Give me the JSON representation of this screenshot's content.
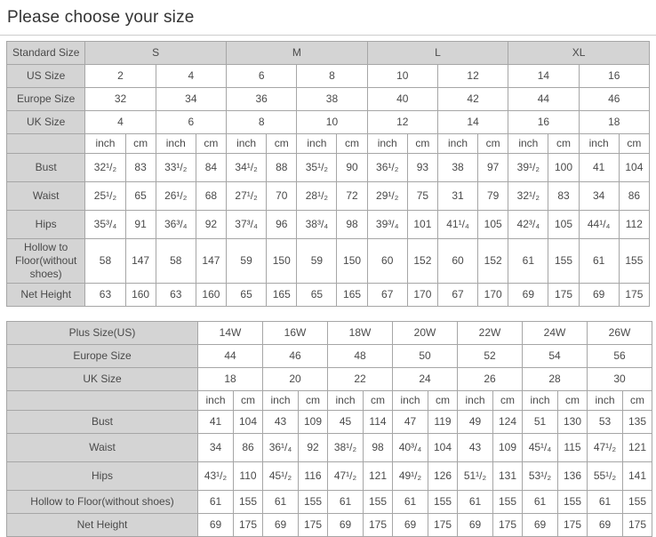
{
  "page": {
    "title": "Please choose your size"
  },
  "standard_table": {
    "corner_label": "Standard Size",
    "size_groups": [
      "S",
      "M",
      "L",
      "XL"
    ],
    "size_rows": [
      {
        "label": "US Size",
        "values": [
          "2",
          "4",
          "6",
          "8",
          "10",
          "12",
          "14",
          "16"
        ]
      },
      {
        "label": "Europe Size",
        "values": [
          "32",
          "34",
          "36",
          "38",
          "40",
          "42",
          "44",
          "46"
        ]
      },
      {
        "label": "UK Size",
        "values": [
          "4",
          "6",
          "8",
          "10",
          "12",
          "14",
          "16",
          "18"
        ]
      }
    ],
    "units": [
      "inch",
      "cm",
      "inch",
      "cm",
      "inch",
      "cm",
      "inch",
      "cm",
      "inch",
      "cm",
      "inch",
      "cm",
      "inch",
      "cm",
      "inch",
      "cm"
    ],
    "measure_rows": [
      {
        "label": "Bust",
        "values": [
          "32¹/₂",
          "83",
          "33¹/₂",
          "84",
          "34¹/₂",
          "88",
          "35¹/₂",
          "90",
          "36¹/₂",
          "93",
          "38",
          "97",
          "39¹/₂",
          "100",
          "41",
          "104"
        ]
      },
      {
        "label": "Waist",
        "values": [
          "25¹/₂",
          "65",
          "26¹/₂",
          "68",
          "27¹/₂",
          "70",
          "28¹/₂",
          "72",
          "29¹/₂",
          "75",
          "31",
          "79",
          "32¹/₂",
          "83",
          "34",
          "86"
        ]
      },
      {
        "label": "Hips",
        "values": [
          "35³/₄",
          "91",
          "36³/₄",
          "92",
          "37³/₄",
          "96",
          "38³/₄",
          "98",
          "39³/₄",
          "101",
          "41¹/₄",
          "105",
          "42³/₄",
          "105",
          "44¹/₄",
          "112"
        ]
      },
      {
        "label": "Hollow to Floor(without shoes)",
        "values": [
          "58",
          "147",
          "58",
          "147",
          "59",
          "150",
          "59",
          "150",
          "60",
          "152",
          "60",
          "152",
          "61",
          "155",
          "61",
          "155"
        ]
      },
      {
        "label": "Net Height",
        "values": [
          "63",
          "160",
          "63",
          "160",
          "65",
          "165",
          "65",
          "165",
          "67",
          "170",
          "67",
          "170",
          "69",
          "175",
          "69",
          "175"
        ]
      }
    ]
  },
  "plus_table": {
    "size_rows": [
      {
        "label": "Plus Size(US)",
        "values": [
          "14W",
          "16W",
          "18W",
          "20W",
          "22W",
          "24W",
          "26W"
        ]
      },
      {
        "label": "Europe Size",
        "values": [
          "44",
          "46",
          "48",
          "50",
          "52",
          "54",
          "56"
        ]
      },
      {
        "label": "UK Size",
        "values": [
          "18",
          "20",
          "22",
          "24",
          "26",
          "28",
          "30"
        ]
      }
    ],
    "units": [
      "inch",
      "cm",
      "inch",
      "cm",
      "inch",
      "cm",
      "inch",
      "cm",
      "inch",
      "cm",
      "inch",
      "cm",
      "inch",
      "cm"
    ],
    "measure_rows": [
      {
        "label": "Bust",
        "values": [
          "41",
          "104",
          "43",
          "109",
          "45",
          "114",
          "47",
          "119",
          "49",
          "124",
          "51",
          "130",
          "53",
          "135"
        ]
      },
      {
        "label": "Waist",
        "values": [
          "34",
          "86",
          "36¹/₄",
          "92",
          "38¹/₂",
          "98",
          "40³/₄",
          "104",
          "43",
          "109",
          "45¹/₄",
          "115",
          "47¹/₂",
          "121"
        ]
      },
      {
        "label": "Hips",
        "values": [
          "43¹/₂",
          "110",
          "45¹/₂",
          "116",
          "47¹/₂",
          "121",
          "49¹/₂",
          "126",
          "51¹/₂",
          "131",
          "53¹/₂",
          "136",
          "55¹/₂",
          "141"
        ]
      },
      {
        "label": "Hollow to Floor(without shoes)",
        "values": [
          "61",
          "155",
          "61",
          "155",
          "61",
          "155",
          "61",
          "155",
          "61",
          "155",
          "61",
          "155",
          "61",
          "155"
        ]
      },
      {
        "label": "Net Height",
        "values": [
          "69",
          "175",
          "69",
          "175",
          "69",
          "175",
          "69",
          "175",
          "69",
          "175",
          "69",
          "175",
          "69",
          "175"
        ]
      }
    ]
  }
}
